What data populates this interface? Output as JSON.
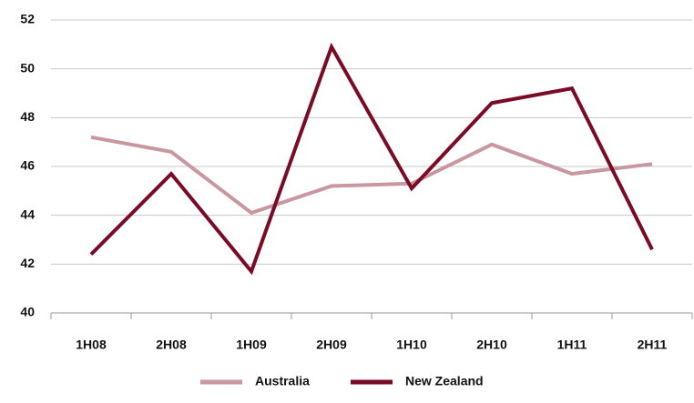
{
  "chart_data": {
    "type": "line",
    "categories": [
      "1H08",
      "2H08",
      "1H09",
      "2H09",
      "1H10",
      "2H10",
      "1H11",
      "2H11"
    ],
    "series": [
      {
        "name": "Australia",
        "color": "#c9979f",
        "values": [
          47.2,
          46.6,
          44.1,
          45.2,
          45.3,
          46.9,
          45.7,
          46.1
        ]
      },
      {
        "name": "New Zealand",
        "color": "#7b0a24",
        "values": [
          42.4,
          45.7,
          41.7,
          50.9,
          45.1,
          48.6,
          49.2,
          42.6
        ]
      }
    ],
    "ylim": [
      40,
      52
    ],
    "yticks": [
      40,
      42,
      44,
      46,
      48,
      50,
      52
    ],
    "grid": true,
    "legend": "bottom"
  }
}
